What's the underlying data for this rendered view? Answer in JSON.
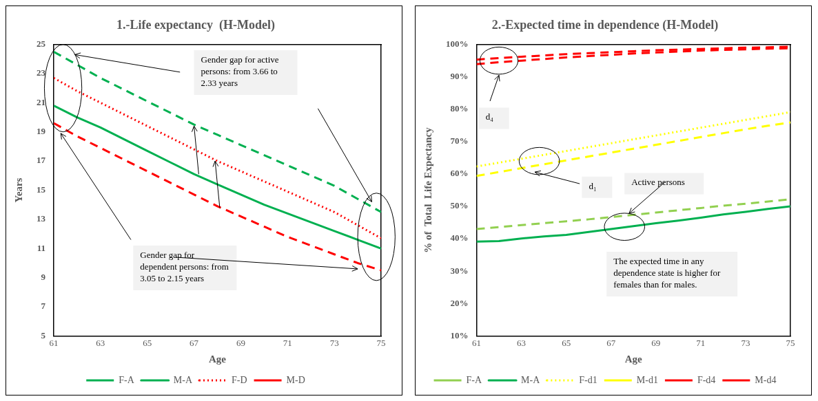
{
  "chart_data": [
    {
      "type": "line",
      "title": "1.-Life expectancy  (H-Model)",
      "xlabel": "Age",
      "ylabel": "Years",
      "x": [
        61,
        62,
        63,
        64,
        65,
        66,
        67,
        68,
        69,
        70,
        71,
        72,
        73,
        74,
        75
      ],
      "xlim": [
        61,
        75
      ],
      "xticks": [
        61,
        63,
        65,
        67,
        69,
        71,
        73,
        75
      ],
      "ylim": [
        5,
        25
      ],
      "yticks": [
        5,
        7,
        9,
        11,
        13,
        15,
        17,
        19,
        21,
        23,
        25
      ],
      "grid": false,
      "legend": "bottom",
      "marker": "none",
      "series": [
        {
          "name": "F-A",
          "color": "#00b050",
          "line_style": "dashed",
          "values": [
            24.5,
            23.6,
            22.7,
            21.9,
            21.1,
            20.3,
            19.5,
            18.8,
            18.1,
            17.4,
            16.7,
            16.0,
            15.3,
            14.4,
            13.5
          ]
        },
        {
          "name": "M-A",
          "color": "#00b050",
          "line_style": "solid",
          "values": [
            20.8,
            20.0,
            19.3,
            18.5,
            17.7,
            16.9,
            16.1,
            15.4,
            14.7,
            14.0,
            13.4,
            12.8,
            12.2,
            11.6,
            11.0
          ]
        },
        {
          "name": "F-D",
          "color": "#ff0000",
          "line_style": "dotted",
          "values": [
            22.7,
            21.8,
            21.0,
            20.2,
            19.4,
            18.6,
            17.8,
            17.0,
            16.3,
            15.6,
            14.9,
            14.2,
            13.5,
            12.6,
            11.7
          ]
        },
        {
          "name": "M-D",
          "color": "#ff0000",
          "line_style": "dashed",
          "values": [
            19.6,
            18.7,
            17.9,
            17.1,
            16.3,
            15.5,
            14.7,
            13.9,
            13.2,
            12.5,
            11.8,
            11.2,
            10.6,
            10.0,
            9.5
          ]
        }
      ],
      "annotations": [
        "Gender gap  for active persons:  from 3.66 to 2.33 years",
        "Gender gap  for dependent persons:  from 3.05 to 2.15 years"
      ]
    },
    {
      "type": "line",
      "title": "2.-Expected time in dependence (H-Model)",
      "xlabel": "Age",
      "ylabel": "% of  Total  Life Expectancy",
      "x": [
        61,
        62,
        63,
        64,
        65,
        66,
        67,
        68,
        69,
        70,
        71,
        72,
        73,
        74,
        75
      ],
      "xlim": [
        61,
        75
      ],
      "xticks": [
        61,
        63,
        65,
        67,
        69,
        71,
        73,
        75
      ],
      "ylim": [
        10,
        100
      ],
      "yticks": [
        {
          "value": 10,
          "label": "10%"
        },
        {
          "value": 20,
          "label": "20%"
        },
        {
          "value": 30,
          "label": "30%"
        },
        {
          "value": 40,
          "label": "40%"
        },
        {
          "value": 50,
          "label": "50%"
        },
        {
          "value": 60,
          "label": "60%"
        },
        {
          "value": 70,
          "label": "70%"
        },
        {
          "value": 80,
          "label": "80%"
        },
        {
          "value": 90,
          "label": "90%"
        },
        {
          "value": 100,
          "label": "100%"
        }
      ],
      "grid": false,
      "legend": "bottom",
      "marker": "none",
      "series": [
        {
          "name": "F-A",
          "color": "#92d050",
          "line_style": "dashed",
          "values": [
            43.0,
            43.6,
            44.2,
            44.8,
            45.4,
            46.0,
            46.7,
            47.4,
            48.1,
            48.8,
            49.5,
            50.2,
            50.8,
            51.5,
            52.2
          ]
        },
        {
          "name": "M-A",
          "color": "#00b050",
          "line_style": "solid",
          "values": [
            39.1,
            39.3,
            40.1,
            40.7,
            41.2,
            42.1,
            43.0,
            43.9,
            44.8,
            45.6,
            46.5,
            47.5,
            48.3,
            49.2,
            50.0
          ]
        },
        {
          "name": "F-d1",
          "color": "#ffff00",
          "line_style": "dotted",
          "values": [
            62.3,
            63.5,
            64.7,
            65.9,
            67.1,
            68.3,
            69.5,
            70.7,
            71.9,
            73.1,
            74.3,
            75.5,
            76.7,
            77.9,
            79.1
          ]
        },
        {
          "name": "M-d1",
          "color": "#ffff00",
          "line_style": "dashed",
          "values": [
            59.4,
            60.6,
            61.8,
            63.0,
            64.2,
            65.4,
            66.6,
            67.8,
            69.0,
            70.2,
            71.4,
            72.6,
            73.8,
            74.9,
            75.9
          ]
        },
        {
          "name": "F-d4",
          "color": "#ff0000",
          "line_style": "dashed",
          "values": [
            95.3,
            95.8,
            96.2,
            96.6,
            97.0,
            97.3,
            97.6,
            97.9,
            98.2,
            98.4,
            98.6,
            98.8,
            99.0,
            99.1,
            99.3
          ]
        },
        {
          "name": "M-d4",
          "color": "#ff0000",
          "line_style": "dashed",
          "values": [
            93.9,
            94.5,
            95.0,
            95.5,
            96.0,
            96.4,
            96.8,
            97.2,
            97.5,
            97.8,
            98.1,
            98.3,
            98.5,
            98.7,
            98.8
          ]
        }
      ],
      "annotations": [
        "d₄",
        "d₁",
        {
          "text": "Active persons",
          "x": 67.8,
          "y": 47.8
        },
        "The expected time in any dependence state is higher for females than for males."
      ]
    }
  ]
}
